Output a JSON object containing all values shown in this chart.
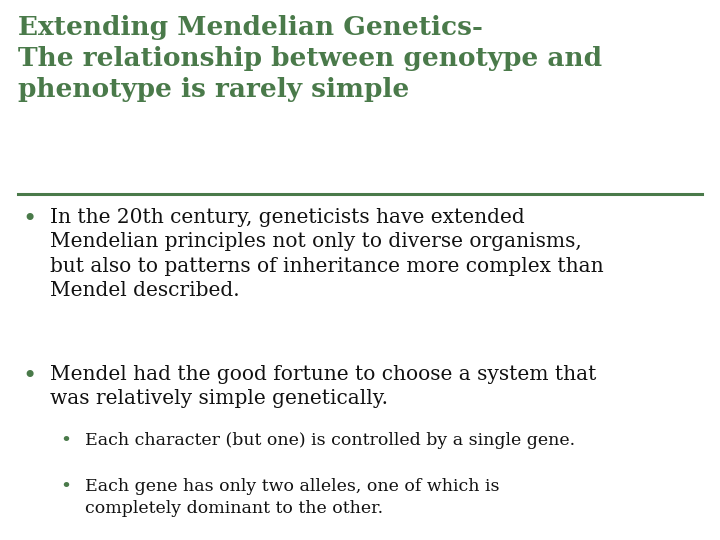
{
  "background_color": "#ffffff",
  "title_lines": [
    "Extending Mendelian Genetics-",
    "The relationship between genotype and",
    "phenotype is rarely simple"
  ],
  "title_color": "#4a7a4a",
  "title_fontsize": 19,
  "separator_color": "#4a7a4a",
  "separator_linewidth": 2.2,
  "body_color": "#111111",
  "bullet_color": "#4a7a4a",
  "bullet1_text": "In the 20th century, geneticists have extended\nMendelian principles not only to diverse organisms,\nbut also to patterns of inheritance more complex than\nMendel described.",
  "bullet2_text": "Mendel had the good fortune to choose a system that\nwas relatively simple genetically.",
  "sub_bullet1_text": "Each character (but one) is controlled by a single gene.",
  "sub_bullet2_text": "Each gene has only two alleles, one of which is\ncompletely dominant to the other.",
  "bullet_fontsize": 14.5,
  "sub_bullet_fontsize": 12.5,
  "bullet_symbol": "•"
}
